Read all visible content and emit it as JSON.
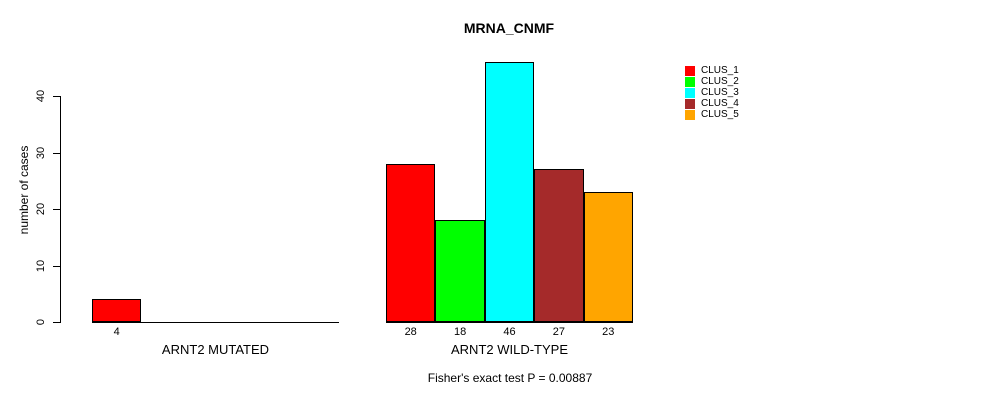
{
  "chart": {
    "title": "MRNA_CNMF",
    "ylabel": "number of cases",
    "caption": "Fisher's exact test P = 0.00887"
  },
  "chart_data": {
    "type": "bar",
    "title": "MRNA_CNMF",
    "ylabel": "number of cases",
    "xlabel": "",
    "groups": [
      "ARNT2 MUTATED",
      "ARNT2 WILD-TYPE"
    ],
    "series": [
      {
        "name": "CLUS_1",
        "color": "#FF0000",
        "values": [
          4,
          28
        ]
      },
      {
        "name": "CLUS_2",
        "color": "#00FF00",
        "values": [
          0,
          18
        ]
      },
      {
        "name": "CLUS_3",
        "color": "#00FFFF",
        "values": [
          0,
          46
        ]
      },
      {
        "name": "CLUS_4",
        "color": "#A52A2A",
        "values": [
          0,
          27
        ]
      },
      {
        "name": "CLUS_5",
        "color": "#FFA500",
        "values": [
          0,
          23
        ]
      }
    ],
    "bar_value_labels": [
      [
        4,
        null,
        null,
        null,
        null
      ],
      [
        28,
        18,
        46,
        27,
        23
      ]
    ],
    "y_ticks": [
      0,
      10,
      20,
      30,
      40
    ],
    "ylim": [
      0,
      46
    ],
    "grid": false,
    "legend_position": "top-right",
    "legend": [
      "CLUS_1",
      "CLUS_2",
      "CLUS_3",
      "CLUS_4",
      "CLUS_5"
    ],
    "annotation": "Fisher's exact test P = 0.00887"
  }
}
